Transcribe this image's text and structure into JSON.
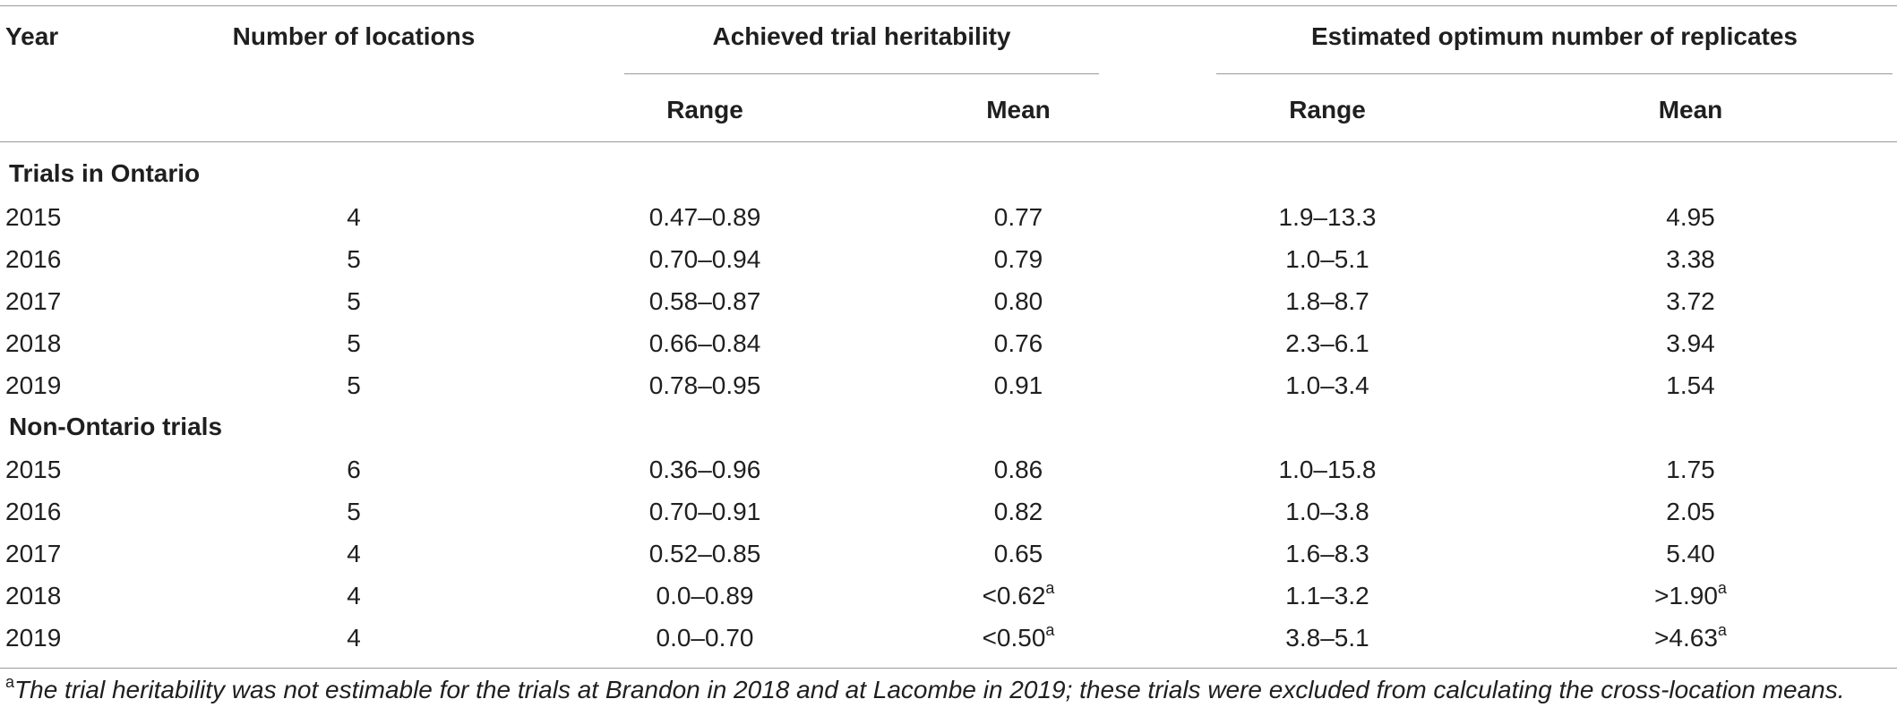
{
  "table": {
    "headers": {
      "year": "Year",
      "locations": "Number of locations",
      "heritability": "Achieved trial heritability",
      "replicates": "Estimated optimum number of replicates",
      "range": "Range",
      "mean": "Mean"
    },
    "sections": [
      {
        "title": "Trials in Ontario",
        "rows": [
          {
            "year": "2015",
            "locations": "4",
            "h_range": "0.47–0.89",
            "h_mean": "0.77",
            "h_mean_sup": "",
            "r_range": "1.9–13.3",
            "r_mean": "4.95",
            "r_mean_sup": ""
          },
          {
            "year": "2016",
            "locations": "5",
            "h_range": "0.70–0.94",
            "h_mean": "0.79",
            "h_mean_sup": "",
            "r_range": "1.0–5.1",
            "r_mean": "3.38",
            "r_mean_sup": ""
          },
          {
            "year": "2017",
            "locations": "5",
            "h_range": "0.58–0.87",
            "h_mean": "0.80",
            "h_mean_sup": "",
            "r_range": "1.8–8.7",
            "r_mean": "3.72",
            "r_mean_sup": ""
          },
          {
            "year": "2018",
            "locations": "5",
            "h_range": "0.66–0.84",
            "h_mean": "0.76",
            "h_mean_sup": "",
            "r_range": "2.3–6.1",
            "r_mean": "3.94",
            "r_mean_sup": ""
          },
          {
            "year": "2019",
            "locations": "5",
            "h_range": "0.78–0.95",
            "h_mean": "0.91",
            "h_mean_sup": "",
            "r_range": "1.0–3.4",
            "r_mean": "1.54",
            "r_mean_sup": ""
          }
        ]
      },
      {
        "title": "Non-Ontario trials",
        "rows": [
          {
            "year": "2015",
            "locations": "6",
            "h_range": "0.36–0.96",
            "h_mean": "0.86",
            "h_mean_sup": "",
            "r_range": "1.0–15.8",
            "r_mean": "1.75",
            "r_mean_sup": ""
          },
          {
            "year": "2016",
            "locations": "5",
            "h_range": "0.70–0.91",
            "h_mean": "0.82",
            "h_mean_sup": "",
            "r_range": "1.0–3.8",
            "r_mean": "2.05",
            "r_mean_sup": ""
          },
          {
            "year": "2017",
            "locations": "4",
            "h_range": "0.52–0.85",
            "h_mean": "0.65",
            "h_mean_sup": "",
            "r_range": "1.6–8.3",
            "r_mean": "5.40",
            "r_mean_sup": ""
          },
          {
            "year": "2018",
            "locations": "4",
            "h_range": "0.0–0.89",
            "h_mean": "<0.62",
            "h_mean_sup": "a",
            "r_range": "1.1–3.2",
            "r_mean": ">1.90",
            "r_mean_sup": "a"
          },
          {
            "year": "2019",
            "locations": "4",
            "h_range": "0.0–0.70",
            "h_mean": "<0.50",
            "h_mean_sup": "a",
            "r_range": "3.8–5.1",
            "r_mean": ">4.63",
            "r_mean_sup": "a"
          }
        ]
      }
    ],
    "footnote": {
      "marker": "a",
      "text": "The trial heritability was not estimable for the trials at Brandon in 2018 and at Lacombe in 2019; these trials were excluded from calculating the cross-location means."
    }
  }
}
